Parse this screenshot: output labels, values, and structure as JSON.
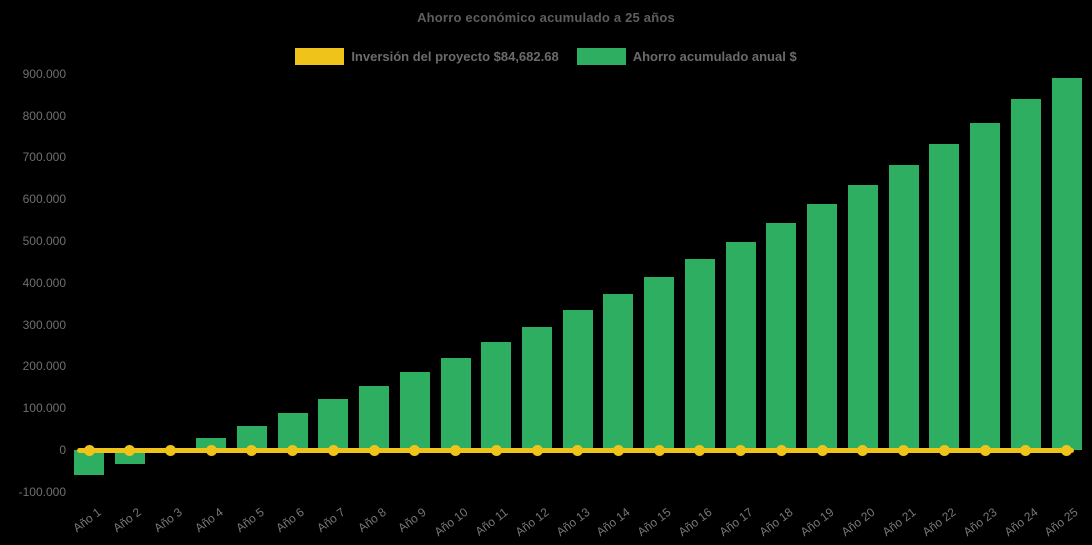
{
  "title": "Ahorro económico acumulado a 25 años",
  "legend": {
    "items": [
      {
        "name": "inversion",
        "label": "Inversión del proyecto $84,682.68",
        "color": "#efc319"
      },
      {
        "name": "ahorro",
        "label": "Ahorro acumulado anual $",
        "color": "#2dae60"
      }
    ]
  },
  "colors": {
    "background": "#000000",
    "bar": "#2dae60",
    "line": "#efc319",
    "tick_text": "#6f6f6f",
    "title_text": "#5e5e5e"
  },
  "chart_data": {
    "type": "bar",
    "title": "Ahorro económico acumulado a 25 años",
    "categories": [
      "Año 1",
      "Año 2",
      "Año 3",
      "Año 4",
      "Año 5",
      "Año 6",
      "Año 7",
      "Año 8",
      "Año 9",
      "Año 10",
      "Año 11",
      "Año 12",
      "Año 13",
      "Año 14",
      "Año 15",
      "Año 16",
      "Año 17",
      "Año 18",
      "Año 19",
      "Año 20",
      "Año 21",
      "Año 22",
      "Año 23",
      "Año 24",
      "Año 25"
    ],
    "series": [
      {
        "name": "Ahorro acumulado anual $",
        "type": "bar",
        "color": "#2dae60",
        "values": [
          -60000,
          -33000,
          0,
          28000,
          58000,
          88000,
          122000,
          153000,
          187000,
          221000,
          258000,
          295000,
          335000,
          373000,
          413000,
          456000,
          498000,
          542000,
          589000,
          634000,
          682000,
          732000,
          783000,
          840000,
          891000
        ]
      },
      {
        "name": "Inversión del proyecto $84,682.68",
        "type": "line",
        "color": "#efc319",
        "values": [
          0,
          0,
          0,
          0,
          0,
          0,
          0,
          0,
          0,
          0,
          0,
          0,
          0,
          0,
          0,
          0,
          0,
          0,
          0,
          0,
          0,
          0,
          0,
          0,
          0
        ]
      }
    ],
    "xlabel": "",
    "ylabel": "",
    "ylim": [
      -100000,
      900000
    ],
    "ytick_step": 100000,
    "ytick_labels": [
      "900.000",
      "800.000",
      "700.000",
      "600.000",
      "500.000",
      "400.000",
      "300.000",
      "200.000",
      "100.000",
      "0",
      "-100.000"
    ],
    "grid": false,
    "legend_position": "top-center",
    "background": "#000000"
  }
}
